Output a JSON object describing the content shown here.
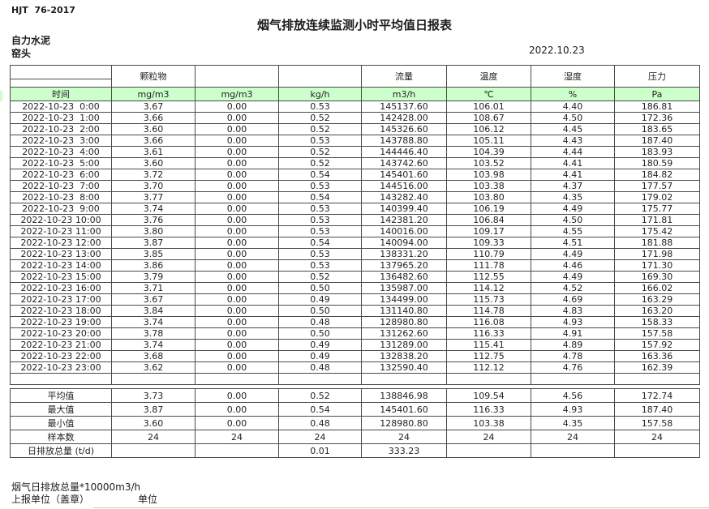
{
  "header": {
    "standard": "HJT  76-2017",
    "title": "烟气排放连续监测小时平均值日报表",
    "company": "自力水泥",
    "location": "窑头",
    "date": "2022.10.23"
  },
  "table": {
    "group_headers": [
      "",
      "颗粒物",
      "",
      "",
      "流量",
      "温度",
      "湿度",
      "压力"
    ],
    "unit_row": [
      "时间",
      "mg/m3",
      "mg/m3",
      "kg/h",
      "m3/h",
      "℃",
      "%",
      "Pa"
    ],
    "rows": [
      [
        "2022-10-23  0:00",
        "3.67",
        "0.00",
        "0.53",
        "145137.60",
        "106.01",
        "4.40",
        "186.81"
      ],
      [
        "2022-10-23  1:00",
        "3.66",
        "0.00",
        "0.52",
        "142428.00",
        "108.67",
        "4.50",
        "172.36"
      ],
      [
        "2022-10-23  2:00",
        "3.60",
        "0.00",
        "0.52",
        "145326.60",
        "106.12",
        "4.45",
        "183.65"
      ],
      [
        "2022-10-23  3:00",
        "3.66",
        "0.00",
        "0.53",
        "143788.80",
        "105.11",
        "4.43",
        "187.40"
      ],
      [
        "2022-10-23  4:00",
        "3.61",
        "0.00",
        "0.52",
        "144446.40",
        "104.39",
        "4.44",
        "183.93"
      ],
      [
        "2022-10-23  5:00",
        "3.60",
        "0.00",
        "0.52",
        "143742.60",
        "103.52",
        "4.41",
        "180.59"
      ],
      [
        "2022-10-23  6:00",
        "3.72",
        "0.00",
        "0.54",
        "145401.60",
        "103.98",
        "4.41",
        "184.82"
      ],
      [
        "2022-10-23  7:00",
        "3.70",
        "0.00",
        "0.53",
        "144516.00",
        "103.38",
        "4.37",
        "177.57"
      ],
      [
        "2022-10-23  8:00",
        "3.77",
        "0.00",
        "0.54",
        "143282.40",
        "103.80",
        "4.35",
        "179.02"
      ],
      [
        "2022-10-23  9:00",
        "3.74",
        "0.00",
        "0.53",
        "140399.40",
        "106.19",
        "4.49",
        "175.77"
      ],
      [
        "2022-10-23 10:00",
        "3.76",
        "0.00",
        "0.53",
        "142381.20",
        "106.84",
        "4.50",
        "171.81"
      ],
      [
        "2022-10-23 11:00",
        "3.80",
        "0.00",
        "0.53",
        "140016.00",
        "109.17",
        "4.55",
        "175.42"
      ],
      [
        "2022-10-23 12:00",
        "3.87",
        "0.00",
        "0.54",
        "140094.00",
        "109.33",
        "4.51",
        "181.88"
      ],
      [
        "2022-10-23 13:00",
        "3.85",
        "0.00",
        "0.53",
        "138331.20",
        "110.79",
        "4.49",
        "171.98"
      ],
      [
        "2022-10-23 14:00",
        "3.86",
        "0.00",
        "0.53",
        "137965.20",
        "111.78",
        "4.46",
        "171.30"
      ],
      [
        "2022-10-23 15:00",
        "3.79",
        "0.00",
        "0.52",
        "136482.60",
        "112.55",
        "4.49",
        "169.30"
      ],
      [
        "2022-10-23 16:00",
        "3.71",
        "0.00",
        "0.50",
        "135987.00",
        "114.12",
        "4.52",
        "166.02"
      ],
      [
        "2022-10-23 17:00",
        "3.67",
        "0.00",
        "0.49",
        "134499.00",
        "115.73",
        "4.69",
        "163.29"
      ],
      [
        "2022-10-23 18:00",
        "3.84",
        "0.00",
        "0.50",
        "131140.80",
        "114.78",
        "4.83",
        "163.20"
      ],
      [
        "2022-10-23 19:00",
        "3.74",
        "0.00",
        "0.48",
        "128980.80",
        "116.08",
        "4.93",
        "158.33"
      ],
      [
        "2022-10-23 20:00",
        "3.78",
        "0.00",
        "0.50",
        "131262.60",
        "116.33",
        "4.91",
        "157.58"
      ],
      [
        "2022-10-23 21:00",
        "3.74",
        "0.00",
        "0.49",
        "131289.00",
        "115.41",
        "4.89",
        "157.92"
      ],
      [
        "2022-10-23 22:00",
        "3.68",
        "0.00",
        "0.49",
        "132838.20",
        "112.75",
        "4.78",
        "163.36"
      ],
      [
        "2022-10-23 23:00",
        "3.62",
        "0.00",
        "0.48",
        "132590.40",
        "112.12",
        "4.76",
        "162.39"
      ]
    ],
    "summary": [
      {
        "label": "平均值",
        "values": [
          "3.73",
          "0.00",
          "0.52",
          "138846.98",
          "109.54",
          "4.56",
          "172.74"
        ]
      },
      {
        "label": "最大值",
        "values": [
          "3.87",
          "0.00",
          "0.54",
          "145401.60",
          "116.33",
          "4.93",
          "187.40"
        ]
      },
      {
        "label": "最小值",
        "values": [
          "3.60",
          "0.00",
          "0.48",
          "128980.80",
          "103.38",
          "4.35",
          "157.58"
        ]
      },
      {
        "label": "样本数",
        "values": [
          "24",
          "24",
          "24",
          "24",
          "24",
          "24",
          "24"
        ]
      },
      {
        "label": "日排放总量 (t/d)",
        "values": [
          "",
          "",
          "0.01",
          "333.23",
          "",
          "",
          ""
        ]
      }
    ]
  },
  "footer": {
    "note": "烟气日排放总量*10000m3/h",
    "report_unit_label": "上报单位（盖章）",
    "unit_label": "单位"
  },
  "colors": {
    "header_green": "#ccffcc",
    "border": "#4a4a4a"
  }
}
